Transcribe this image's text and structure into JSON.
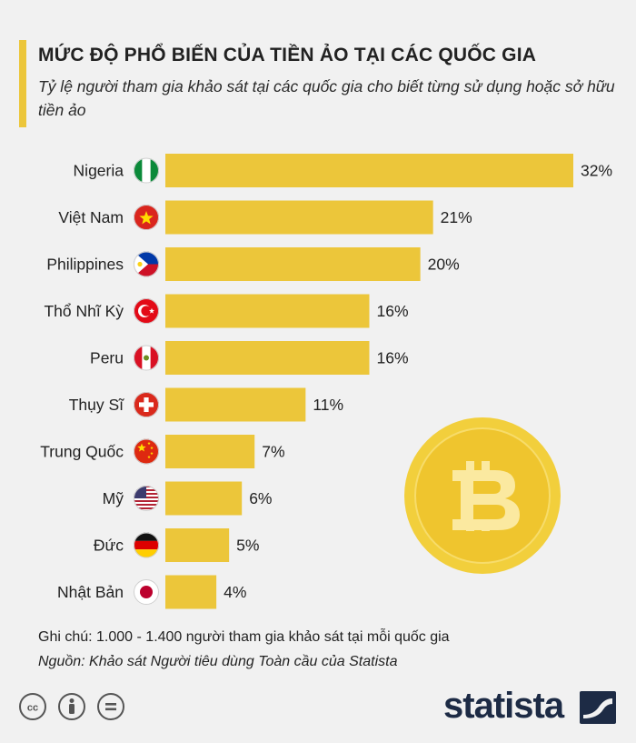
{
  "title": "MỨC ĐỘ PHỔ BIẾN CỦA TIỀN ẢO TẠI CÁC QUỐC GIA",
  "subtitle": "Tỷ lệ người tham gia khảo sát tại các quốc gia cho biết từng sử dụng hoặc sở hữu tiền ảo",
  "note": "Ghi chú: 1.000 - 1.400 người tham gia khảo sát tại mỗi quốc gia",
  "source": "Nguồn: Khảo sát Người tiêu dùng Toàn cầu của Statista",
  "brand": "statista",
  "colors": {
    "bar": "#ecc63a",
    "background": "#f1f1f1",
    "coin": "#f2cf3c",
    "brand": "#1d2b45"
  },
  "icons": [
    "bitcoin-coin-icon",
    "cc-license-icon",
    "attribution-icon",
    "no-derivatives-icon",
    "statista-logo-icon"
  ],
  "chart_data": {
    "type": "bar",
    "orientation": "horizontal",
    "categories": [
      "Nigeria",
      "Việt Nam",
      "Philippines",
      "Thổ Nhĩ Kỳ",
      "Peru",
      "Thụy Sĩ",
      "Trung Quốc",
      "Mỹ",
      "Đức",
      "Nhật Bản"
    ],
    "values": [
      32,
      21,
      20,
      16,
      16,
      11,
      7,
      6,
      5,
      4
    ],
    "value_labels": [
      "32%",
      "21%",
      "20%",
      "16%",
      "16%",
      "11%",
      "7%",
      "6%",
      "5%",
      "4%"
    ],
    "flags": [
      "nigeria-flag-icon",
      "vietnam-flag-icon",
      "philippines-flag-icon",
      "turkey-flag-icon",
      "peru-flag-icon",
      "switzerland-flag-icon",
      "china-flag-icon",
      "usa-flag-icon",
      "germany-flag-icon",
      "japan-flag-icon"
    ],
    "xlim": [
      0,
      32
    ],
    "grid": false,
    "legend": "none"
  }
}
